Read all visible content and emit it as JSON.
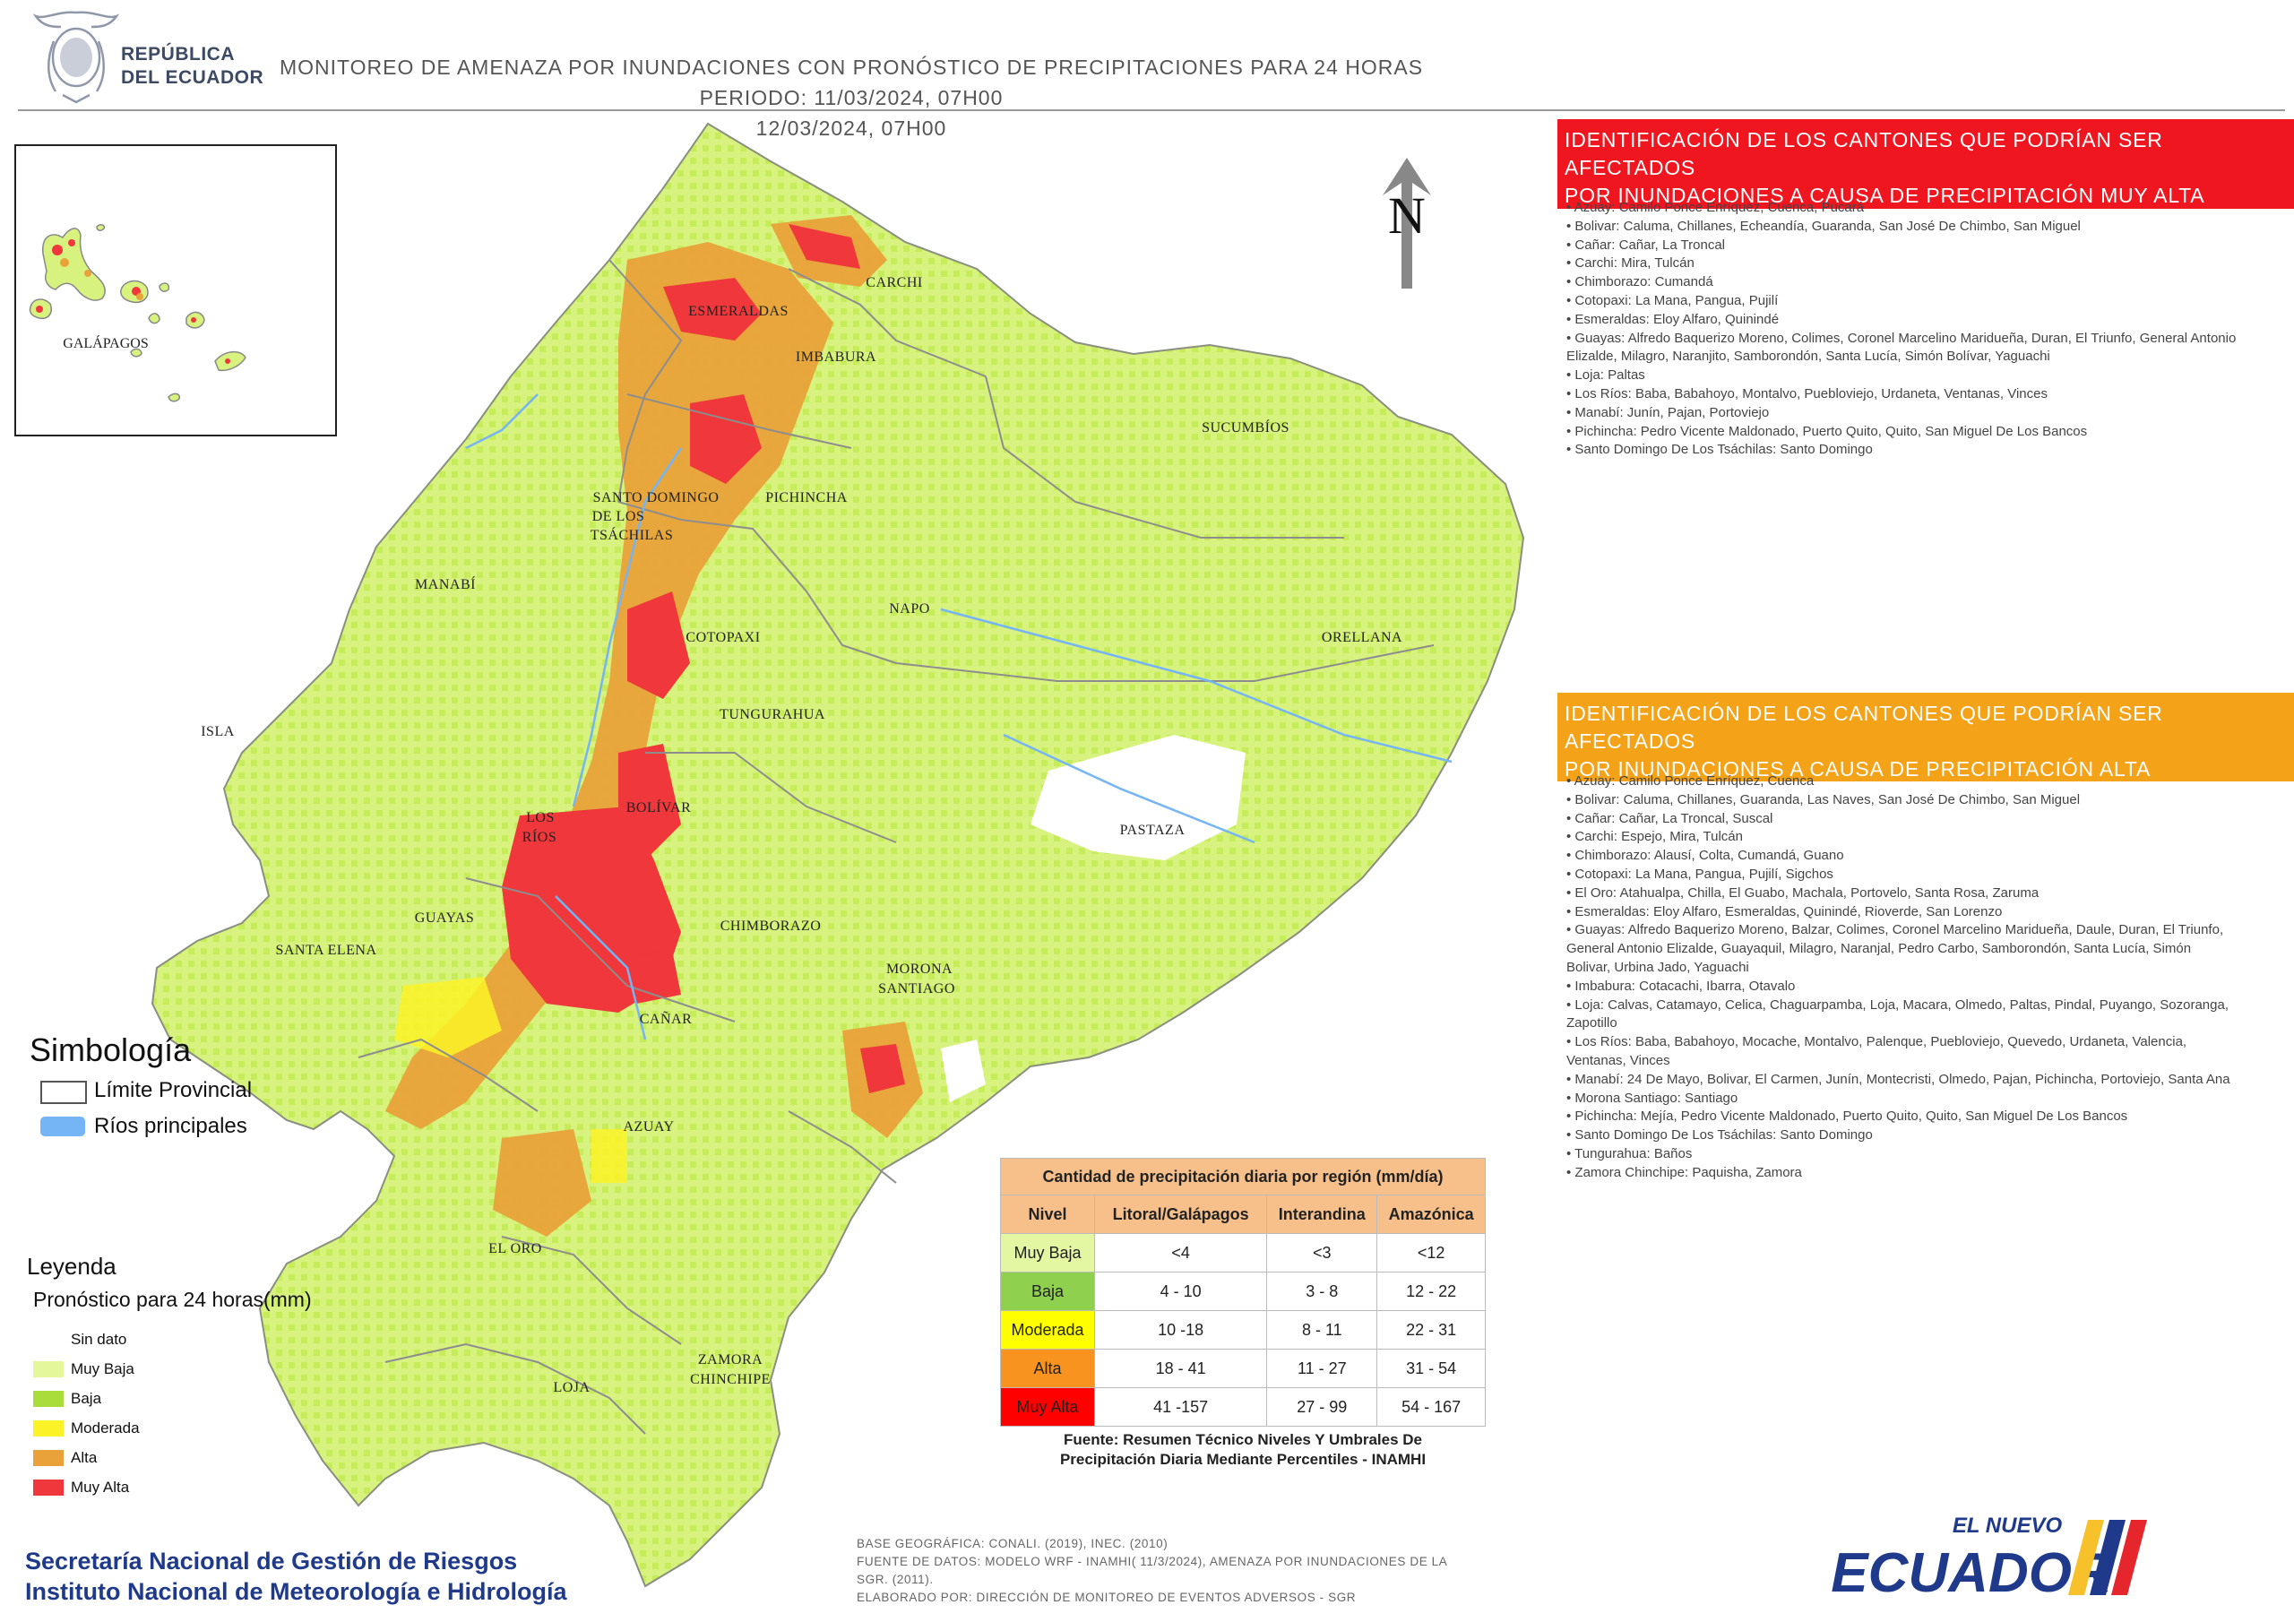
{
  "header": {
    "country_line1": "REPÚBLICA",
    "country_line2": "DEL ECUADOR",
    "title_line1": "MONITOREO DE AMENAZA POR INUNDACIONES  CON PRONÓSTICO DE  PRECIPITACIONES PARA 24 HORAS  PERIODO: 11/03/2024, 07H00",
    "title_line2": "12/03/2024, 07H00"
  },
  "map": {
    "north_symbol": "N",
    "province_labels": {
      "galapagos": "GALÁPAGOS",
      "esmeraldas": "ESMERALDAS",
      "carchi": "CARCHI",
      "imbabura": "IMBABURA",
      "sucumbios": "SUCUMBÍOS",
      "santo_domingo_1": "SANTO DOMINGO",
      "santo_domingo_2": "DE LOS",
      "santo_domingo_3": "TSÁCHILAS",
      "pichincha": "PICHINCHA",
      "manabi": "MANABÍ",
      "napo": "NAPO",
      "orellana": "ORELLANA",
      "cotopaxi": "COTOPAXI",
      "isla": "ISLA",
      "tungurahua": "TUNGURAHUA",
      "bolivar": "BOLÍVAR",
      "los_rios_1": "LOS",
      "los_rios_2": "RÍOS",
      "pastaza": "PASTAZA",
      "guayas": "GUAYAS",
      "chimborazo": "CHIMBORAZO",
      "santa_elena": "SANTA ELENA",
      "morona_1": "MORONA",
      "morona_2": "SANTIAGO",
      "canar": "CAÑAR",
      "azuay": "AZUAY",
      "el_oro": "EL ORO",
      "zamora_1": "ZAMORA",
      "zamora_2": "CHINCHIPE",
      "loja": "LOJA"
    }
  },
  "panels": {
    "muy_alta": {
      "title_line1": "IDENTIFICACIÓN DE LOS CANTONES QUE PODRÍAN SER AFECTADOS",
      "title_line2": "POR INUNDACIONES  A CAUSA DE PRECIPITACIÓN MUY ALTA",
      "items": [
        "Azuay: Camilo Ponce Enríquez, Cuenca, Pucará",
        "Bolivar: Caluma, Chillanes, Echeandía, Guaranda, San José De Chimbo, San Miguel",
        "Cañar: Cañar, La Troncal",
        "Carchi: Mira, Tulcán",
        "Chimborazo: Cumandá",
        "Cotopaxi: La Mana, Pangua, Pujilí",
        "Esmeraldas: Eloy Alfaro, Quinindé",
        "Guayas: Alfredo Baquerizo Moreno, Colimes, Coronel Marcelino Maridueña, Duran, El Triunfo, General Antonio",
        "Elizalde, Milagro, Naranjito, Samborondón, Santa Lucía, Simón Bolívar, Yaguachi",
        "Loja: Paltas",
        "Los Ríos: Baba, Babahoyo, Montalvo, Puebloviejo, Urdaneta, Ventanas, Vinces",
        "Manabí: Junín, Pajan, Portoviejo",
        "Pichincha: Pedro Vicente Maldonado, Puerto Quito, Quito, San Miguel De Los Bancos",
        "Santo Domingo De Los Tsáchilas: Santo Domingo"
      ]
    },
    "alta": {
      "title_line1": "IDENTIFICACIÓN DE LOS CANTONES QUE  PODRÍAN SER AFECTADOS",
      "title_line2": "POR INUNDACIONES  A CAUSA DE PRECIPITACIÓN  ALTA",
      "items": [
        "Azuay: Camilo Ponce Enríquez, Cuenca",
        "Bolivar: Caluma, Chillanes, Guaranda, Las Naves, San José De Chimbo, San Miguel",
        "Cañar: Cañar, La Troncal, Suscal",
        "Carchi: Espejo, Mira, Tulcán",
        "Chimborazo: Alausí, Colta, Cumandá, Guano",
        "Cotopaxi: La Mana, Pangua, Pujilí, Sigchos",
        "El Oro: Atahualpa, Chilla, El Guabo, Machala, Portovelo, Santa Rosa, Zaruma",
        "Esmeraldas: Eloy Alfaro, Esmeraldas, Quinindé, Rioverde, San Lorenzo",
        "Guayas: Alfredo Baquerizo Moreno, Balzar, Colimes, Coronel Marcelino Maridueña, Daule, Duran, El Triunfo,",
        "General Antonio Elizalde, Guayaquil, Milagro, Naranjal, Pedro Carbo, Samborondón, Santa Lucía, Simón",
        "Bolivar, Urbina Jado, Yaguachi",
        "Imbabura: Cotacachi, Ibarra, Otavalo",
        "Loja: Calvas, Catamayo, Celica, Chaguarpamba, Loja, Macara, Olmedo, Paltas, Pindal, Puyango, Sozoranga,",
        "Zapotillo",
        "Los Ríos: Baba, Babahoyo, Mocache, Montalvo, Palenque, Puebloviejo, Quevedo, Urdaneta, Valencia,",
        "Ventanas, Vinces",
        "Manabí: 24 De Mayo, Bolivar, El Carmen, Junín, Montecristi, Olmedo, Pajan, Pichincha, Portoviejo, Santa Ana",
        "Morona Santiago: Santiago",
        "Pichincha: Mejía, Pedro Vicente Maldonado, Puerto Quito, Quito, San Miguel De Los Bancos",
        "Santo Domingo De Los Tsáchilas: Santo Domingo",
        "Tungurahua: Baños",
        "Zamora Chinchipe: Paquisha, Zamora"
      ]
    }
  },
  "legend": {
    "simbologia_title": "Simbología",
    "limite_provincial": "Límite Provincial",
    "rios_principales": "Ríos principales",
    "leyenda_title": "Leyenda",
    "leyenda_subtitle": "Pronóstico para 24 horas(mm)",
    "items": [
      {
        "label": "Sin dato",
        "color": "#ffffff"
      },
      {
        "label": "Muy Baja",
        "color": "#e4f79a"
      },
      {
        "label": "Baja",
        "color": "#a9dd3c"
      },
      {
        "label": "Moderada",
        "color": "#fbf227"
      },
      {
        "label": "Alta",
        "color": "#e9a23a"
      },
      {
        "label": "Muy Alta",
        "color": "#f0373b"
      }
    ]
  },
  "table": {
    "title": "Cantidad de precipitación diaria por región (mm/día)",
    "headers": [
      "Nivel",
      "Litoral/Galápagos",
      "Interandina",
      "Amazónica"
    ],
    "rows": [
      {
        "nivel": "Muy Baja",
        "color": "#e3f7a3",
        "litoral": "<4",
        "interandina": "<3",
        "amazonica": "<12"
      },
      {
        "nivel": "Baja",
        "color": "#8fd14f",
        "litoral": "4 - 10",
        "interandina": "3 - 8",
        "amazonica": "12 - 22"
      },
      {
        "nivel": "Moderada",
        "color": "#ffff00",
        "litoral": "10 -18",
        "interandina": "8 - 11",
        "amazonica": "22 - 31"
      },
      {
        "nivel": "Alta",
        "color": "#f7931e",
        "litoral": "18 - 41",
        "interandina": "11 - 27",
        "amazonica": "31 - 54"
      },
      {
        "nivel": "Muy Alta",
        "color": "#ff0000",
        "litoral": "41 -157",
        "interandina": "27 - 99",
        "amazonica": "54 - 167"
      }
    ],
    "source_line1": "Fuente: Resumen Técnico Niveles Y Umbrales De",
    "source_line2": "Precipitación Diaria Mediante Percentiles - INAMHI"
  },
  "footer": {
    "institution_line1": "Secretaría Nacional de Gestión de Riesgos",
    "institution_line2": "Instituto Nacional de Meteorología e Hidrología",
    "meta_line1": "BASE GEOGRÁFICA: CONALI. (2019), INEC. (2010)",
    "meta_line2": "FUENTE DE DATOS: MODELO WRF - INAMHI( 11/3/2024),  AMENAZA POR INUNDACIONES DE LA",
    "meta_line3": "SGR. (2011).",
    "meta_line4": "ELABORADO POR: DIRECCIÓN DE MONITOREO DE EVENTOS ADVERSOS - SGR",
    "brand_top": "EL NUEVO",
    "brand_main": "ECUADOR"
  }
}
